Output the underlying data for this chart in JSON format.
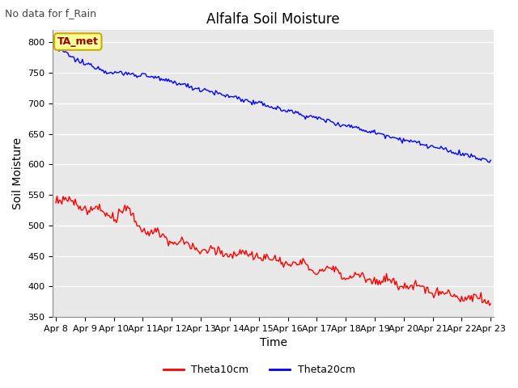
{
  "title": "Alfalfa Soil Moisture",
  "subtitle": "No data for f_Rain",
  "xlabel": "Time",
  "ylabel": "Soil Moisture",
  "ylim": [
    350,
    820
  ],
  "xlim_days": 15,
  "xtick_labels": [
    "Apr 8",
    "Apr 9",
    "Apr 10",
    "Apr 11",
    "Apr 12",
    "Apr 13",
    "Apr 14",
    "Apr 15",
    "Apr 16",
    "Apr 17",
    "Apr 18",
    "Apr 19",
    "Apr 20",
    "Apr 21",
    "Apr 22",
    "Apr 23"
  ],
  "ytick_values": [
    350,
    400,
    450,
    500,
    550,
    600,
    650,
    700,
    750,
    800
  ],
  "legend_label_red": "Theta10cm",
  "legend_label_blue": "Theta20cm",
  "color_red": "#ff0000",
  "color_blue": "#0000ff",
  "plot_bg_color": "#e8e8e8",
  "fig_bg_color": "#ffffff",
  "grid_color": "#ffffff",
  "legend_box_facecolor": "#ffff99",
  "legend_box_edgecolor": "#ccaa00",
  "ta_met_text": "TA_met",
  "ta_met_text_color": "#990000",
  "title_fontsize": 12,
  "axis_label_fontsize": 10,
  "tick_fontsize": 8,
  "subtitle_fontsize": 9,
  "legend_fontsize": 9,
  "line_width": 1.0
}
